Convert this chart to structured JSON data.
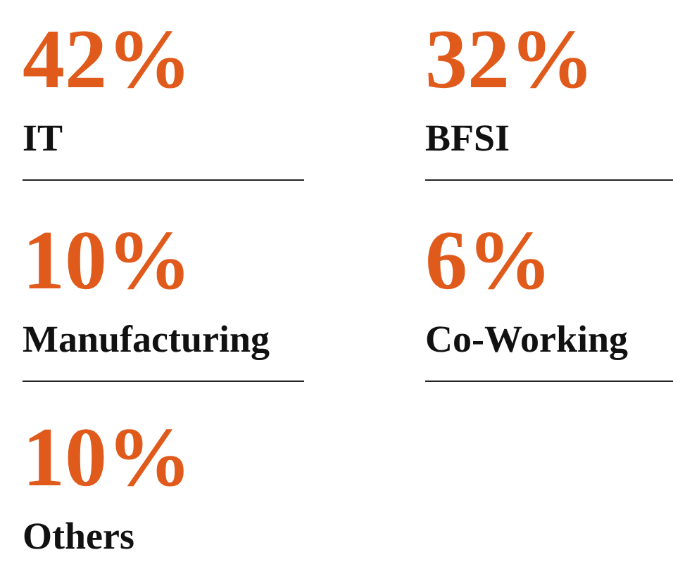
{
  "chart_data": {
    "type": "other",
    "categories": [
      "IT",
      "BFSI",
      "Manufacturing",
      "Co-Working",
      "Others"
    ],
    "values": [
      42,
      32,
      10,
      6,
      10
    ],
    "value_labels": [
      "42%",
      "32%",
      "10%",
      "6%",
      "10%"
    ],
    "color": "#e05a1b"
  }
}
